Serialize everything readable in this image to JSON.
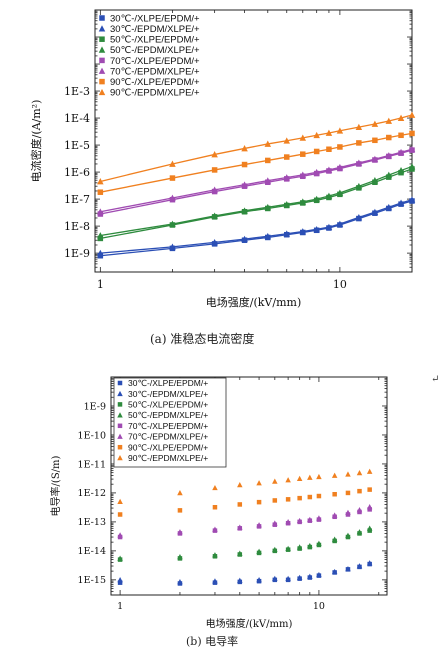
{
  "colors": {
    "30": "#2b4fb5",
    "50": "#2e8b3e",
    "70": "#a04bb2",
    "90": "#f08020"
  },
  "chart_data": [
    {
      "type": "scatter",
      "subplot_caption": "(a)  准稳态电流密度",
      "xlabel": "电场强度/(kV/mm)",
      "ylabel": "电流密度/(A/m²)",
      "xscale": "log",
      "yscale": "log",
      "xlim": [
        0.95,
        20
      ],
      "ylim": [
        2e-10,
        1
      ],
      "xticks": [
        {
          "v": 1,
          "label": "1"
        },
        {
          "v": 10,
          "label": "10"
        }
      ],
      "yticks": [
        {
          "v": 1e-09,
          "label": "1E-9"
        },
        {
          "v": 1e-08,
          "label": "1E-8"
        },
        {
          "v": 1e-07,
          "label": "1E-7"
        },
        {
          "v": 1e-06,
          "label": "1E-6"
        },
        {
          "v": 1e-05,
          "label": "1E-5"
        },
        {
          "v": 0.0001,
          "label": "1E-4"
        },
        {
          "v": 0.001,
          "label": "1E-3"
        }
      ],
      "legend_position": "top-left",
      "x": [
        1,
        2,
        3,
        4,
        5,
        6,
        7,
        8,
        9,
        10,
        12,
        14,
        16,
        18,
        20
      ],
      "series": [
        {
          "name": "30℃-/XLPE/EPDM/+",
          "temp": "30",
          "marker": "square",
          "fit": true,
          "values": [
            8e-10,
            1.5e-09,
            2.2e-09,
            3e-09,
            3.8e-09,
            4.8e-09,
            5.8e-09,
            7e-09,
            8.5e-09,
            1.1e-08,
            1.9e-08,
            3e-08,
            4.5e-08,
            6.5e-08,
            8.5e-08
          ]
        },
        {
          "name": "30℃-/EPDM/XLPE/+",
          "temp": "30",
          "marker": "triangle",
          "fit": true,
          "values": [
            1e-09,
            1.7e-09,
            2.5e-09,
            3.3e-09,
            4.2e-09,
            5.2e-09,
            6.3e-09,
            7.6e-09,
            9.2e-09,
            1.2e-08,
            2.1e-08,
            3.3e-08,
            5e-08,
            7.2e-08,
            9.5e-08
          ]
        },
        {
          "name": "50℃-/XLPE/EPDM/+",
          "temp": "50",
          "marker": "square",
          "fit": true,
          "values": [
            3.5e-09,
            1.1e-08,
            2.2e-08,
            3.4e-08,
            4.5e-08,
            5.8e-08,
            7.2e-08,
            9e-08,
            1.15e-07,
            1.5e-07,
            2.6e-07,
            4.2e-07,
            6.5e-07,
            9.5e-07,
            1.3e-06
          ]
        },
        {
          "name": "50℃-/EPDM/XLPE/+",
          "temp": "50",
          "marker": "triangle",
          "fit": true,
          "values": [
            4.5e-09,
            1.2e-08,
            2.4e-08,
            3.7e-08,
            5e-08,
            6.4e-08,
            8e-08,
            1e-07,
            1.3e-07,
            1.7e-07,
            3e-07,
            4.9e-07,
            7.8e-07,
            1.15e-06,
            1.6e-06
          ]
        },
        {
          "name": "70℃-/XLPE/EPDM/+",
          "temp": "70",
          "marker": "square",
          "fit": true,
          "values": [
            2.8e-08,
            9.5e-08,
            1.9e-07,
            3e-07,
            4.2e-07,
            5.6e-07,
            7e-07,
            8.8e-07,
            1.1e-06,
            1.35e-06,
            2e-06,
            2.8e-06,
            3.8e-06,
            5e-06,
            6.5e-06
          ]
        },
        {
          "name": "70℃-/EPDM/XLPE/+",
          "temp": "70",
          "marker": "triangle",
          "fit": true,
          "values": [
            3.4e-08,
            1.1e-07,
            2.2e-07,
            3.4e-07,
            4.8e-07,
            6.3e-07,
            7.9e-07,
            9.8e-07,
            1.2e-06,
            1.5e-06,
            2.2e-06,
            3e-06,
            4.1e-06,
            5.4e-06,
            7e-06
          ]
        },
        {
          "name": "90℃-/XLPE/EPDM/+",
          "temp": "90",
          "marker": "square",
          "fit": true,
          "values": [
            1.8e-07,
            6e-07,
            1.2e-06,
            1.9e-06,
            2.7e-06,
            3.6e-06,
            4.6e-06,
            5.8e-06,
            7e-06,
            8.5e-06,
            1.2e-05,
            1.5e-05,
            1.9e-05,
            2.3e-05,
            2.7e-05
          ]
        },
        {
          "name": "90℃-/EPDM/XLPE/+",
          "temp": "90",
          "marker": "triangle",
          "fit": true,
          "values": [
            4.5e-07,
            2e-06,
            4.5e-06,
            7.5e-06,
            1.1e-05,
            1.45e-05,
            1.85e-05,
            2.3e-05,
            2.8e-05,
            3.4e-05,
            4.6e-05,
            6e-05,
            7.8e-05,
            0.0001,
            0.00013
          ]
        }
      ]
    },
    {
      "type": "scatter",
      "subplot_caption": "(b)  电导率",
      "xlabel": "电场强度/(kV/mm)",
      "ylabel": "电导率/(S/m)",
      "xscale": "log",
      "yscale": "log",
      "xlim": [
        0.9,
        22
      ],
      "ylim": [
        3e-16,
        1e-08
      ],
      "xticks": [
        {
          "v": 1,
          "label": "1"
        },
        {
          "v": 10,
          "label": "10"
        }
      ],
      "yticks": [
        {
          "v": 1e-15,
          "label": "1E-15"
        },
        {
          "v": 1e-14,
          "label": "1E-14"
        },
        {
          "v": 1e-13,
          "label": "1E-13"
        },
        {
          "v": 1e-12,
          "label": "1E-12"
        },
        {
          "v": 1e-11,
          "label": "1E-11"
        },
        {
          "v": 1e-10,
          "label": "1E-10"
        },
        {
          "v": 1e-09,
          "label": "1E-9"
        }
      ],
      "legend_position": "top-left",
      "x": [
        1,
        2,
        3,
        4,
        5,
        6,
        7,
        8,
        9,
        10,
        12,
        14,
        16,
        18
      ],
      "series": [
        {
          "name": "30℃-/XLPE/EPDM/+",
          "temp": "30",
          "marker": "square",
          "values": [
            8e-16,
            7.5e-16,
            8e-16,
            8.5e-16,
            9e-16,
            1e-15,
            1e-15,
            1.1e-15,
            1.2e-15,
            1.4e-15,
            1.8e-15,
            2.3e-15,
            2.8e-15,
            3.5e-15
          ]
        },
        {
          "name": "30℃-/EPDM/XLPE/+",
          "temp": "30",
          "marker": "triangle",
          "values": [
            1e-15,
            8.5e-16,
            9e-16,
            9.5e-16,
            1e-15,
            1.1e-15,
            1.1e-15,
            1.2e-15,
            1.3e-15,
            1.5e-15,
            1.9e-15,
            2.4e-15,
            3e-15,
            3.8e-15
          ]
        },
        {
          "name": "50℃-/XLPE/EPDM/+",
          "temp": "50",
          "marker": "square",
          "values": [
            5e-15,
            5.5e-15,
            6.5e-15,
            7.5e-15,
            8.5e-15,
            1e-14,
            1.1e-14,
            1.2e-14,
            1.35e-14,
            1.6e-14,
            2.2e-14,
            3e-14,
            4e-14,
            5e-14
          ]
        },
        {
          "name": "50℃-/EPDM/XLPE/+",
          "temp": "50",
          "marker": "triangle",
          "values": [
            5.5e-15,
            6.2e-15,
            7.2e-15,
            8.2e-15,
            9.5e-15,
            1.1e-14,
            1.2e-14,
            1.35e-14,
            1.5e-14,
            1.8e-14,
            2.5e-14,
            3.4e-14,
            4.5e-14,
            6e-14
          ]
        },
        {
          "name": "70℃-/XLPE/EPDM/+",
          "temp": "70",
          "marker": "square",
          "values": [
            3e-14,
            4e-14,
            5e-14,
            6e-14,
            7e-14,
            8e-14,
            9e-14,
            1e-13,
            1.1e-13,
            1.2e-13,
            1.5e-13,
            1.8e-13,
            2.2e-13,
            2.7e-13
          ]
        },
        {
          "name": "70℃-/EPDM/XLPE/+",
          "temp": "70",
          "marker": "triangle",
          "values": [
            3.5e-14,
            4.5e-14,
            5.5e-14,
            6.5e-14,
            7.8e-14,
            9e-14,
            1e-13,
            1.1e-13,
            1.2e-13,
            1.35e-13,
            1.7e-13,
            2.1e-13,
            2.6e-13,
            3.3e-13
          ]
        },
        {
          "name": "90℃-/XLPE/EPDM/+",
          "temp": "90",
          "marker": "square",
          "values": [
            1.8e-13,
            2.5e-13,
            3.2e-13,
            4e-13,
            4.8e-13,
            5.5e-13,
            6e-13,
            6.6e-13,
            7.2e-13,
            7.8e-13,
            9e-13,
            1e-12,
            1.15e-12,
            1.3e-12
          ]
        },
        {
          "name": "90℃-/EPDM/XLPE/+",
          "temp": "90",
          "marker": "triangle",
          "values": [
            5e-13,
            1e-12,
            1.5e-12,
            1.9e-12,
            2.2e-12,
            2.5e-12,
            2.8e-12,
            3.1e-12,
            3.4e-12,
            3.6e-12,
            4e-12,
            4.4e-12,
            4.9e-12,
            5.5e-12
          ]
        }
      ]
    }
  ],
  "return_mark": "↵"
}
